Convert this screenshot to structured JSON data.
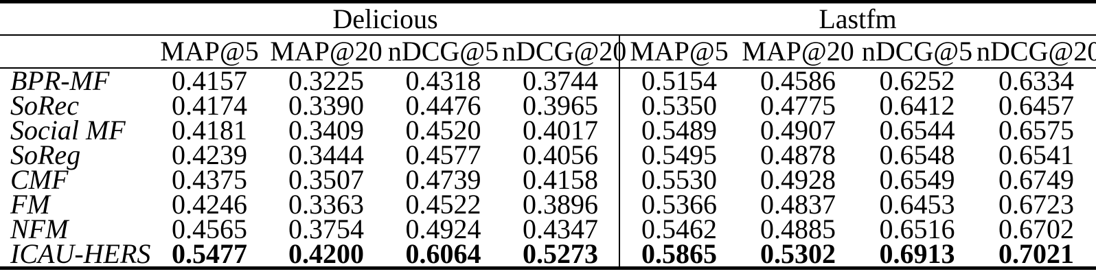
{
  "table": {
    "groups": [
      {
        "label": "Delicious"
      },
      {
        "label": "Lastfm"
      }
    ],
    "metrics": [
      "MAP@5",
      "MAP@20",
      "nDCG@5",
      "nDCG@20"
    ],
    "rows": [
      {
        "method": "BPR-MF",
        "bold": false,
        "values": [
          "0.4157",
          "0.3225",
          "0.4318",
          "0.3744",
          "0.5154",
          "0.4586",
          "0.6252",
          "0.6334"
        ]
      },
      {
        "method": "SoRec",
        "bold": false,
        "values": [
          "0.4174",
          "0.3390",
          "0.4476",
          "0.3965",
          "0.5350",
          "0.4775",
          "0.6412",
          "0.6457"
        ]
      },
      {
        "method": "Social MF",
        "bold": false,
        "values": [
          "0.4181",
          "0.3409",
          "0.4520",
          "0.4017",
          "0.5489",
          "0.4907",
          "0.6544",
          "0.6575"
        ]
      },
      {
        "method": "SoReg",
        "bold": false,
        "values": [
          "0.4239",
          "0.3444",
          "0.4577",
          "0.4056",
          "0.5495",
          "0.4878",
          "0.6548",
          "0.6541"
        ]
      },
      {
        "method": "CMF",
        "bold": false,
        "values": [
          "0.4375",
          "0.3507",
          "0.4739",
          "0.4158",
          "0.5530",
          "0.4928",
          "0.6549",
          "0.6749"
        ]
      },
      {
        "method": "FM",
        "bold": false,
        "values": [
          "0.4246",
          "0.3363",
          "0.4522",
          "0.3896",
          "0.5366",
          "0.4837",
          "0.6453",
          "0.6723"
        ]
      },
      {
        "method": "NFM",
        "bold": false,
        "values": [
          "0.4565",
          "0.3754",
          "0.4924",
          "0.4347",
          "0.5462",
          "0.4885",
          "0.6516",
          "0.6702"
        ]
      },
      {
        "method": "ICAU-HERS",
        "bold": true,
        "values": [
          "0.5477",
          "0.4200",
          "0.6064",
          "0.5273",
          "0.5865",
          "0.5302",
          "0.6913",
          "0.7021"
        ]
      }
    ],
    "colors": {
      "text": "#000000",
      "rule": "#000000",
      "background": "#ffffff"
    }
  }
}
